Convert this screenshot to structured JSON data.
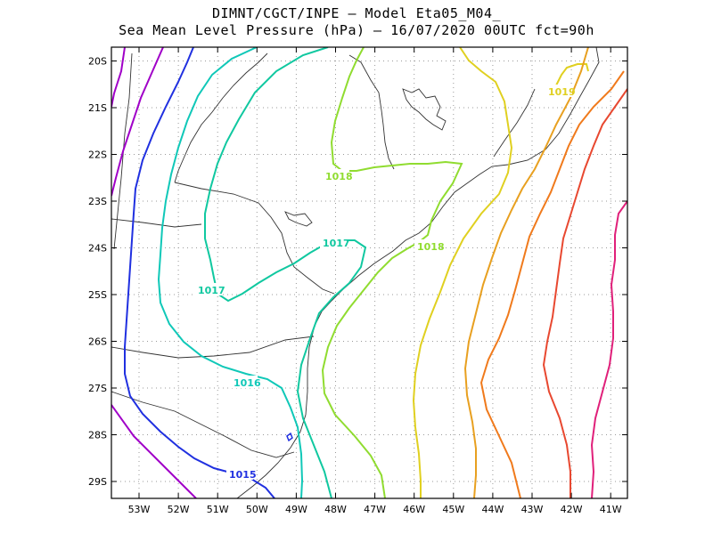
{
  "title": {
    "line1": "DIMNT/CGCT/INPE –  Model Eta05_M04_",
    "line2": "Sea Mean Level Pressure (hPa) – 16/07/2020 00UTC fct=90h"
  },
  "axes": {
    "lon_ticks": [
      "53W",
      "52W",
      "51W",
      "50W",
      "49W",
      "48W",
      "47W",
      "46W",
      "45W",
      "44W",
      "43W",
      "42W",
      "41W"
    ],
    "lat_ticks": [
      "20S",
      "21S",
      "22S",
      "23S",
      "24S",
      "25S",
      "26S",
      "27S",
      "28S",
      "29S"
    ]
  },
  "contour_labels": [
    {
      "text": "1015",
      "color": "#2030e0"
    },
    {
      "text": "1016",
      "color": "#10c8b8"
    },
    {
      "text": "1017",
      "color": "#10c8a0"
    },
    {
      "text": "1017",
      "color": "#10c8a0"
    },
    {
      "text": "1018",
      "color": "#90dc30"
    },
    {
      "text": "1018",
      "color": "#90dc30"
    },
    {
      "text": "1019",
      "color": "#e0d020"
    }
  ],
  "chart_data": {
    "type": "contour-map",
    "variable": "Sea Mean Level Pressure (hPa)",
    "lon_range": [
      -53.6,
      -40.5
    ],
    "lat_range": [
      -29.4,
      -19.6
    ],
    "grid": true,
    "isobars": [
      {
        "hPa": 1015,
        "color": "#2030e0",
        "labeled": true
      },
      {
        "hPa": 1016,
        "color": "#10c8b8",
        "labeled": true
      },
      {
        "hPa": 1017,
        "color": "#10c8a0",
        "labeled": true
      },
      {
        "hPa": 1018,
        "color": "#90dc30",
        "labeled": true
      },
      {
        "hPa": 1019,
        "color": "#e0d020",
        "labeled": true
      },
      {
        "hPa": null,
        "color": "#a000c8"
      },
      {
        "hPa": null,
        "color": "#c0b818"
      },
      {
        "hPa": null,
        "color": "#e8a020"
      },
      {
        "hPa": null,
        "color": "#f07a1c"
      },
      {
        "hPa": null,
        "color": "#e84830"
      },
      {
        "hPa": null,
        "color": "#e0207a"
      }
    ]
  }
}
